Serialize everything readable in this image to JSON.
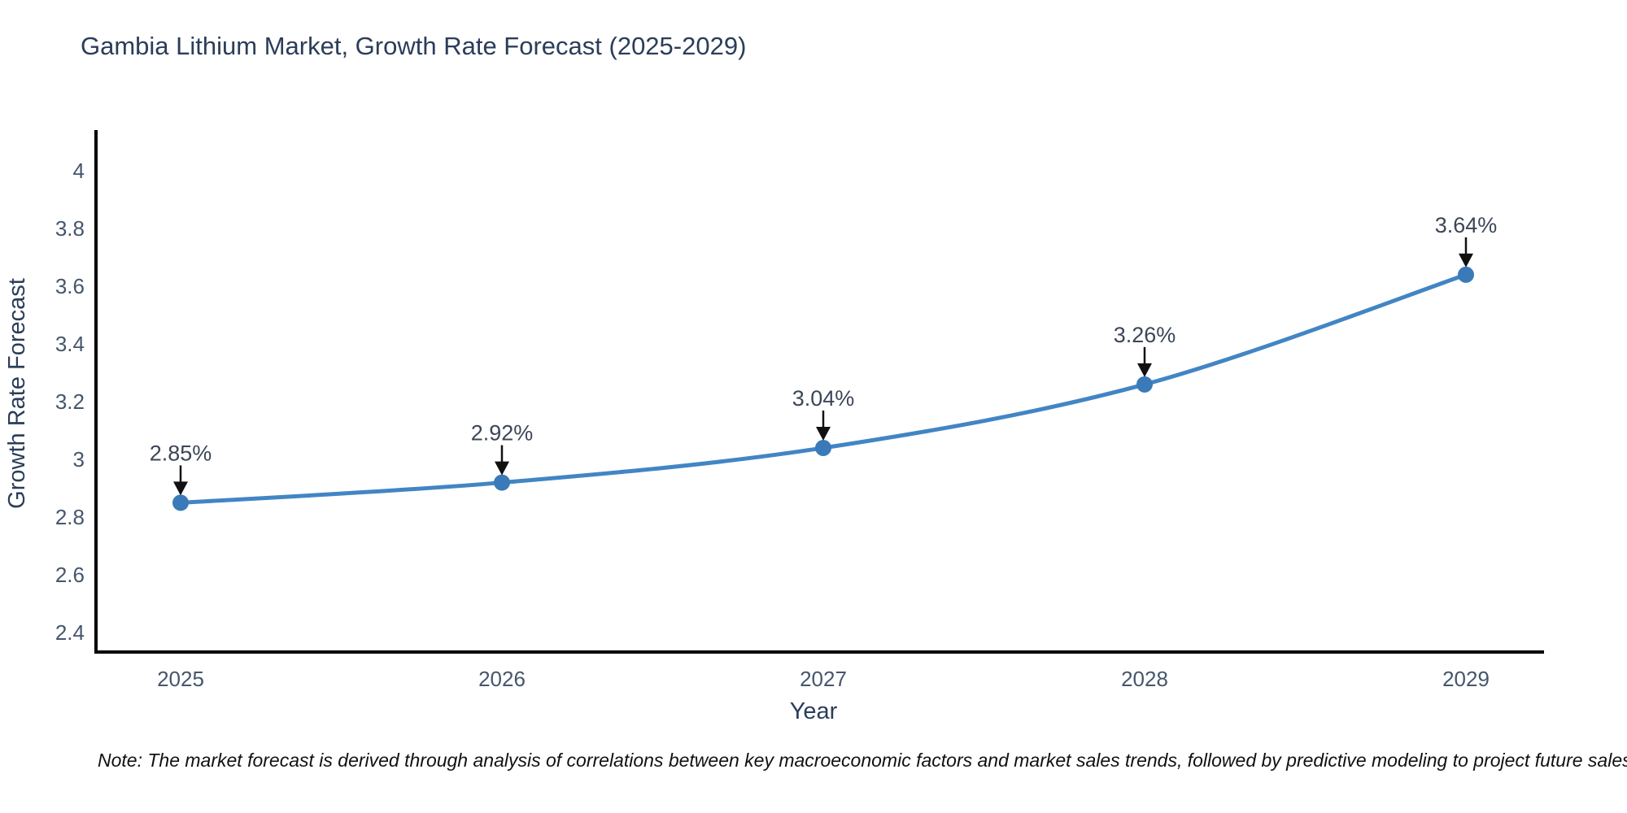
{
  "chart_data": {
    "type": "line",
    "title": "Gambia Lithium Market, Growth Rate Forecast (2025-2029)",
    "xlabel": "Year",
    "ylabel": "Growth Rate Forecast",
    "categories": [
      "2025",
      "2026",
      "2027",
      "2028",
      "2029"
    ],
    "values": [
      2.85,
      2.92,
      3.04,
      3.26,
      3.64
    ],
    "point_labels": [
      "2.85%",
      "2.92%",
      "3.04%",
      "3.26%",
      "3.64%"
    ],
    "y_tick_labels": [
      "4",
      "3.8",
      "3.6",
      "3.4",
      "3.2",
      "3",
      "2.8",
      "2.6",
      "2.4"
    ],
    "ylim": [
      2.333,
      4.141
    ],
    "grid": false,
    "legend": "none",
    "line_color": "#4285c4",
    "marker_color": "#3a7ab8",
    "axis_color": "#000000",
    "arrow_color": "#111111",
    "title_color": "#2b3d59",
    "tick_color": "#45566b",
    "annotation_color": "#3c4657",
    "note_color": "#111111",
    "note": "Note: The market forecast is derived through analysis of correlations between key macroeconomic factors and market sales trends, followed by predictive modeling to project future sales"
  }
}
